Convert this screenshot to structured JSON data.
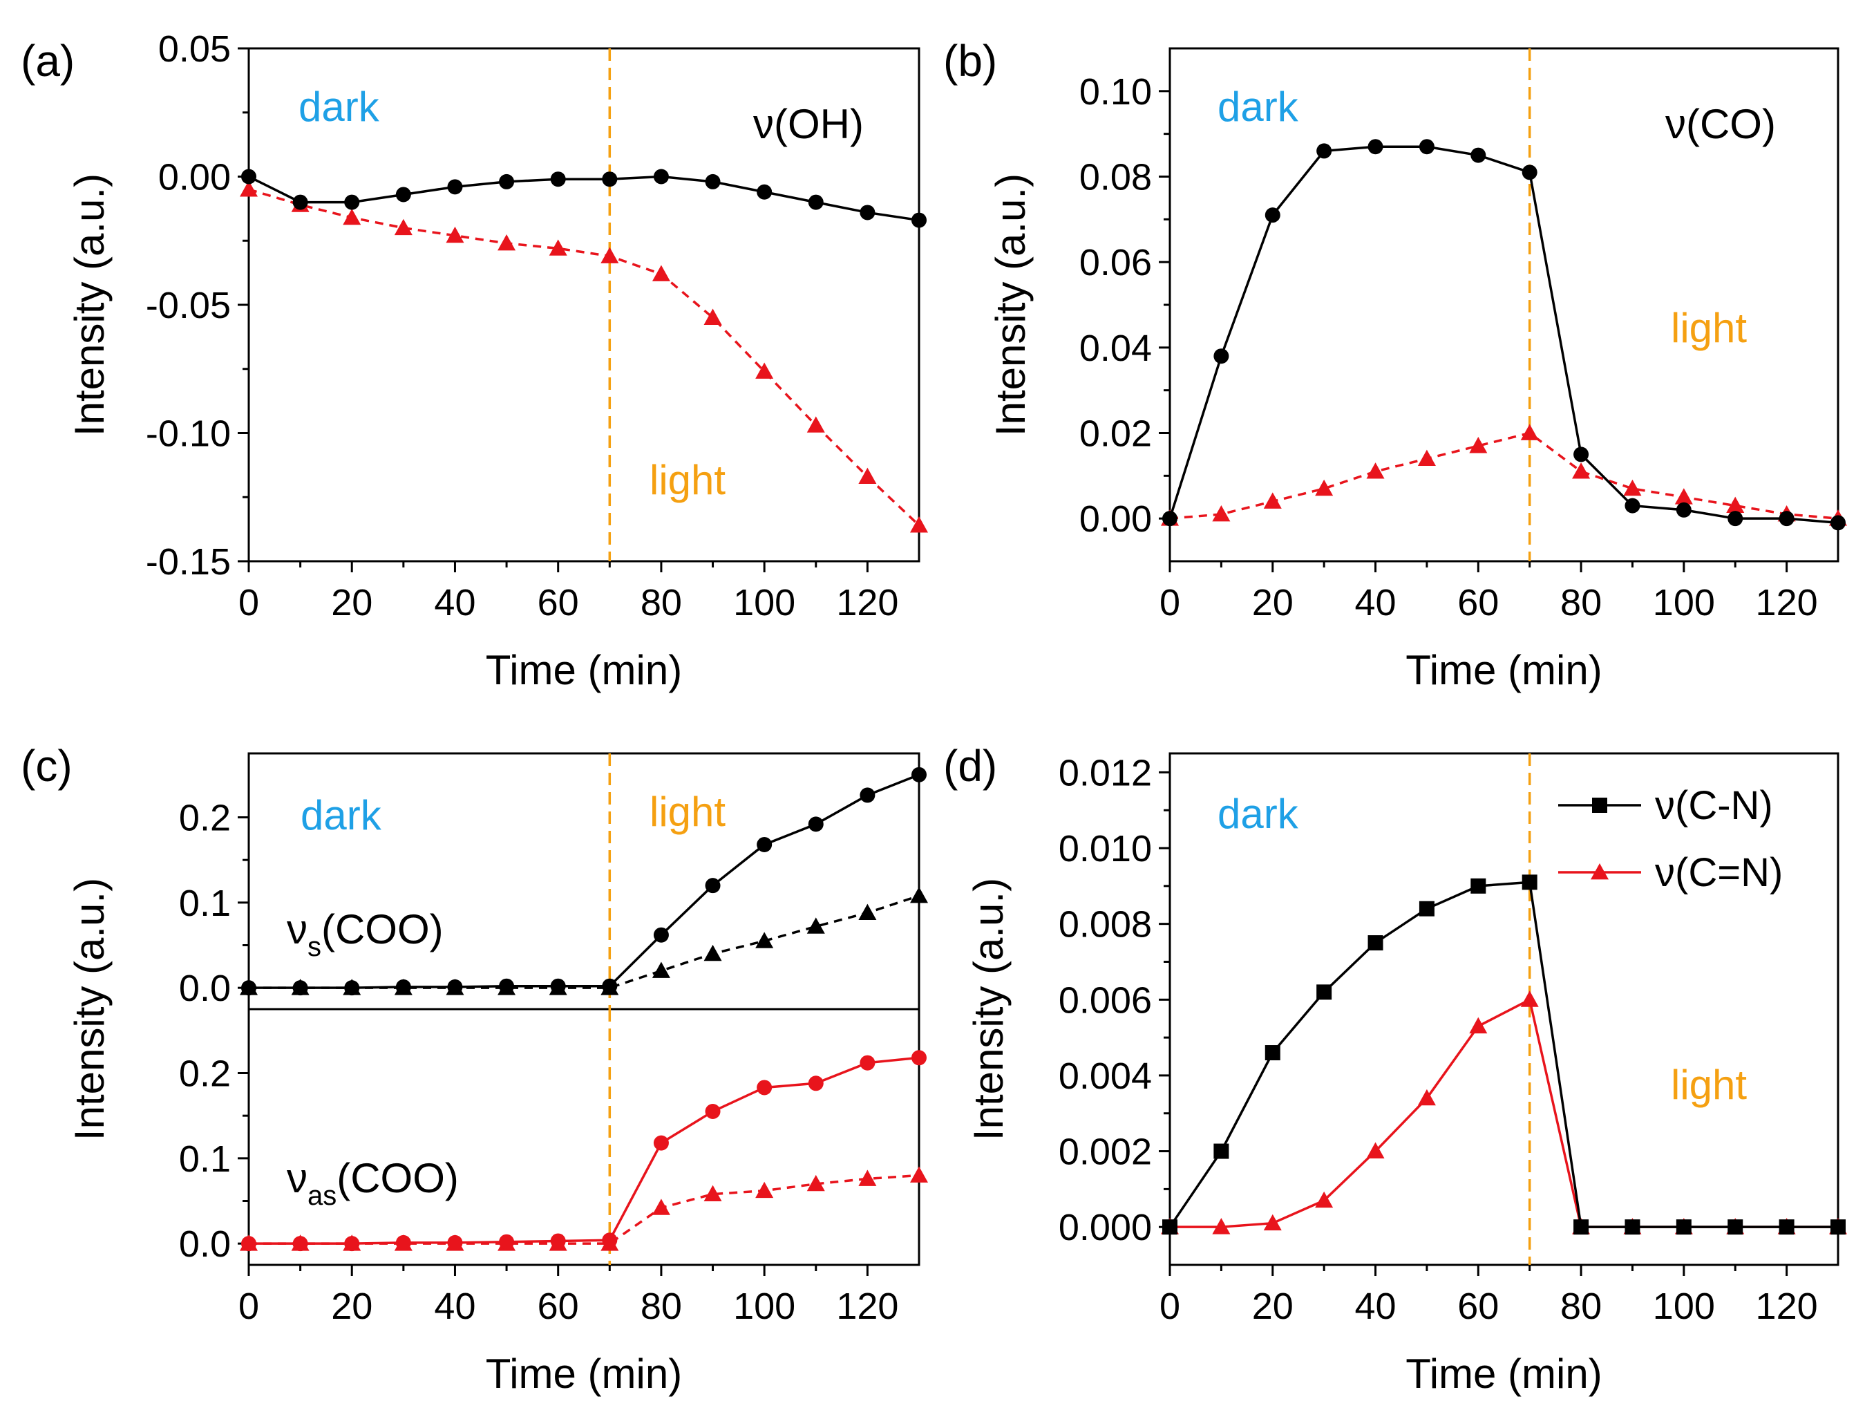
{
  "colors": {
    "dark_text": "#1ea0e6",
    "light_text": "#f5a011",
    "divider": "#f5a011",
    "series_black": "#000000",
    "series_red": "#e8141c"
  },
  "chart_data": [
    {
      "panel": "(a)",
      "type": "line",
      "xlabel": "Time (min)",
      "ylabel": "Intensity (a.u.)",
      "xlim": [
        0,
        130
      ],
      "ylim": [
        -0.15,
        0.05
      ],
      "xticks": [
        0,
        20,
        40,
        60,
        80,
        100,
        120
      ],
      "xticklabels": [
        "0",
        "20",
        "40",
        "60",
        "80",
        "100",
        "120"
      ],
      "yticks": [
        -0.15,
        -0.1,
        -0.05,
        0.0,
        0.05
      ],
      "yticklabels": [
        "-0.15",
        "-0.10",
        "-0.05",
        "0.00",
        "0.05"
      ],
      "divider_x": 70,
      "annotations": {
        "dark": "dark",
        "light": "light",
        "mode": "ν(OH)"
      },
      "series": [
        {
          "name": "black",
          "marker": "circle",
          "dash": "solid",
          "x": [
            0,
            10,
            20,
            30,
            40,
            50,
            60,
            70,
            80,
            90,
            100,
            110,
            120,
            130
          ],
          "values": [
            0.0,
            -0.01,
            -0.01,
            -0.007,
            -0.004,
            -0.002,
            -0.001,
            -0.001,
            0.0,
            -0.002,
            -0.006,
            -0.01,
            -0.014,
            -0.017
          ]
        },
        {
          "name": "red",
          "marker": "triangle",
          "dash": "dashed",
          "x": [
            0,
            10,
            20,
            30,
            40,
            50,
            60,
            70,
            80,
            90,
            100,
            110,
            120,
            130
          ],
          "values": [
            -0.005,
            -0.011,
            -0.016,
            -0.02,
            -0.023,
            -0.026,
            -0.028,
            -0.031,
            -0.038,
            -0.055,
            -0.076,
            -0.097,
            -0.117,
            -0.136
          ]
        }
      ]
    },
    {
      "panel": "(b)",
      "type": "line",
      "xlabel": "Time (min)",
      "ylabel": "Intensity (a.u.)",
      "xlim": [
        0,
        130
      ],
      "ylim": [
        -0.01,
        0.11
      ],
      "xticks": [
        0,
        20,
        40,
        60,
        80,
        100,
        120
      ],
      "xticklabels": [
        "0",
        "20",
        "40",
        "60",
        "80",
        "100",
        "120"
      ],
      "yticks": [
        0.0,
        0.02,
        0.04,
        0.06,
        0.08,
        0.1
      ],
      "yticklabels": [
        "0.00",
        "0.02",
        "0.04",
        "0.06",
        "0.08",
        "0.10"
      ],
      "divider_x": 70,
      "annotations": {
        "dark": "dark",
        "light": "light",
        "mode": "ν(CO)"
      },
      "series": [
        {
          "name": "black",
          "marker": "circle",
          "dash": "solid",
          "x": [
            0,
            10,
            20,
            30,
            40,
            50,
            60,
            70,
            80,
            90,
            100,
            110,
            120,
            130
          ],
          "values": [
            0.0,
            0.038,
            0.071,
            0.086,
            0.087,
            0.087,
            0.085,
            0.081,
            0.015,
            0.003,
            0.002,
            0.0,
            0.0,
            -0.001
          ]
        },
        {
          "name": "red",
          "marker": "triangle",
          "dash": "dashed",
          "x": [
            0,
            10,
            20,
            30,
            40,
            50,
            60,
            70,
            80,
            90,
            100,
            110,
            120,
            130
          ],
          "values": [
            0.0,
            0.001,
            0.004,
            0.007,
            0.011,
            0.014,
            0.017,
            0.02,
            0.011,
            0.007,
            0.005,
            0.003,
            0.001,
            0.0
          ]
        }
      ]
    },
    {
      "panel": "(c)",
      "type": "line",
      "xlabel": "Time (min)",
      "ylabel": "Intensity (a.u.)",
      "xlim": [
        0,
        130
      ],
      "xticks": [
        0,
        20,
        40,
        60,
        80,
        100,
        120
      ],
      "xticklabels": [
        "0",
        "20",
        "40",
        "60",
        "80",
        "100",
        "120"
      ],
      "divider_x": 70,
      "annotations": {
        "dark": "dark",
        "light": "light"
      },
      "subplots": [
        {
          "name": "upper",
          "mode_main": "ν",
          "mode_sub": "s",
          "mode_rest": "(COO)",
          "ylim": [
            -0.025,
            0.275
          ],
          "yticks": [
            0.0,
            0.1,
            0.2
          ],
          "yticklabels": [
            "0.0",
            "0.1",
            "0.2"
          ],
          "series": [
            {
              "name": "black-circle",
              "marker": "circle",
              "dash": "solid",
              "x": [
                0,
                10,
                20,
                30,
                40,
                50,
                60,
                70,
                80,
                90,
                100,
                110,
                120,
                130
              ],
              "values": [
                0.0,
                0.0,
                0.0,
                0.001,
                0.001,
                0.002,
                0.002,
                0.002,
                0.062,
                0.12,
                0.168,
                0.192,
                0.226,
                0.25
              ]
            },
            {
              "name": "black-triangle",
              "marker": "triangle",
              "dash": "dashed",
              "x": [
                0,
                10,
                20,
                30,
                40,
                50,
                60,
                70,
                80,
                90,
                100,
                110,
                120,
                130
              ],
              "values": [
                0.0,
                0.0,
                0.0,
                0.0,
                0.0,
                0.0,
                0.0,
                0.0,
                0.02,
                0.04,
                0.055,
                0.072,
                0.088,
                0.108
              ]
            }
          ]
        },
        {
          "name": "lower",
          "mode_main": "ν",
          "mode_sub": "as",
          "mode_rest": "(COO)",
          "ylim": [
            -0.025,
            0.275
          ],
          "yticks": [
            0.0,
            0.1,
            0.2
          ],
          "yticklabels": [
            "0.0",
            "0.1",
            "0.2"
          ],
          "series": [
            {
              "name": "red-circle",
              "marker": "circle",
              "dash": "solid",
              "x": [
                0,
                10,
                20,
                30,
                40,
                50,
                60,
                70,
                80,
                90,
                100,
                110,
                120,
                130
              ],
              "values": [
                0.0,
                0.0,
                0.0,
                0.001,
                0.001,
                0.002,
                0.003,
                0.004,
                0.118,
                0.155,
                0.183,
                0.188,
                0.212,
                0.218
              ]
            },
            {
              "name": "red-triangle",
              "marker": "triangle",
              "dash": "dashed",
              "x": [
                0,
                10,
                20,
                30,
                40,
                50,
                60,
                70,
                80,
                90,
                100,
                110,
                120,
                130
              ],
              "values": [
                0.0,
                0.0,
                0.0,
                0.0,
                0.0,
                0.0,
                0.0,
                0.0,
                0.042,
                0.058,
                0.062,
                0.07,
                0.076,
                0.08
              ]
            }
          ]
        }
      ]
    },
    {
      "panel": "(d)",
      "type": "line",
      "xlabel": "Time (min)",
      "ylabel": "Intensity (a.u.)",
      "xlim": [
        0,
        130
      ],
      "ylim": [
        -0.001,
        0.0125
      ],
      "xticks": [
        0,
        20,
        40,
        60,
        80,
        100,
        120
      ],
      "xticklabels": [
        "0",
        "20",
        "40",
        "60",
        "80",
        "100",
        "120"
      ],
      "yticks": [
        0.0,
        0.002,
        0.004,
        0.006,
        0.008,
        0.01,
        0.012
      ],
      "yticklabels": [
        "0.000",
        "0.002",
        "0.004",
        "0.006",
        "0.008",
        "0.010",
        "0.012"
      ],
      "divider_x": 70,
      "annotations": {
        "dark": "dark",
        "light": "light"
      },
      "legend": {
        "position": "top-right"
      },
      "series": [
        {
          "name": "ν(C-N)",
          "marker": "square",
          "dash": "solid",
          "x": [
            0,
            10,
            20,
            30,
            40,
            50,
            60,
            70,
            80,
            90,
            100,
            110,
            120,
            130
          ],
          "values": [
            0.0,
            0.002,
            0.0046,
            0.0062,
            0.0075,
            0.0084,
            0.009,
            0.0091,
            0.0,
            0.0,
            0.0,
            0.0,
            0.0,
            0.0
          ]
        },
        {
          "name": "ν(C=N)",
          "marker": "triangle",
          "dash": "solid",
          "x": [
            0,
            10,
            20,
            30,
            40,
            50,
            60,
            70,
            80,
            90,
            100,
            110,
            120,
            130
          ],
          "values": [
            0.0,
            -0.0,
            0.0001,
            0.0007,
            0.002,
            0.0034,
            0.0053,
            0.006,
            0.0,
            0.0,
            0.0,
            0.0,
            0.0,
            0.0
          ]
        }
      ]
    }
  ]
}
